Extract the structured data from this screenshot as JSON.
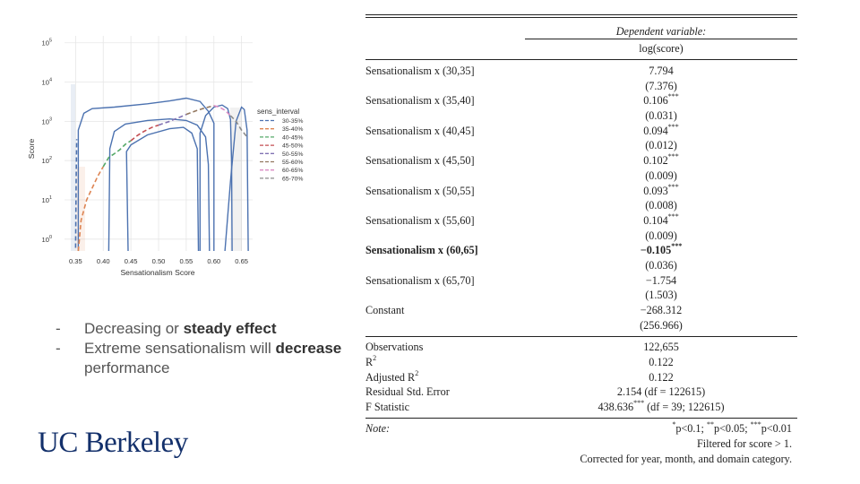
{
  "chart_data": {
    "type": "line",
    "xlabel": "Sensationalism Score",
    "ylabel": "Score",
    "yscale": "log",
    "xlim": [
      0.33,
      0.67
    ],
    "ylim": [
      0.5,
      150000
    ],
    "x_ticks": [
      0.35,
      0.4,
      0.45,
      0.5,
      0.55,
      0.6,
      0.65
    ],
    "x_tick_labels": [
      "0.35",
      "0.40",
      "0.45",
      "0.50",
      "0.55",
      "0.60",
      "0.65"
    ],
    "y_ticks": [
      1,
      10,
      100,
      1000,
      10000,
      100000
    ],
    "y_tick_labels": [
      {
        "base": "10",
        "exp": "0"
      },
      {
        "base": "10",
        "exp": "1"
      },
      {
        "base": "10",
        "exp": "2"
      },
      {
        "base": "10",
        "exp": "3"
      },
      {
        "base": "10",
        "exp": "4"
      },
      {
        "base": "10",
        "exp": "5"
      }
    ],
    "grid": true,
    "legend_title": "sens_interval",
    "legend_position": "right",
    "series": [
      {
        "name": "30-35%",
        "color": "#4c72b0",
        "x": [
          0.35,
          0.351,
          0.352
        ],
        "y": [
          0.6,
          30,
          350
        ]
      },
      {
        "name": "35-40%",
        "color": "#dd8452",
        "x": [
          0.355,
          0.36,
          0.37,
          0.38,
          0.39,
          0.4
        ],
        "y": [
          0.5,
          3,
          10,
          20,
          40,
          70
        ]
      },
      {
        "name": "40-45%",
        "color": "#55a868",
        "x": [
          0.4,
          0.41,
          0.42,
          0.43,
          0.44,
          0.45
        ],
        "y": [
          70,
          120,
          150,
          190,
          260,
          320
        ]
      },
      {
        "name": "45-50%",
        "color": "#c44e52",
        "x": [
          0.45,
          0.46,
          0.47,
          0.48,
          0.49,
          0.5
        ],
        "y": [
          320,
          420,
          520,
          620,
          720,
          800
        ]
      },
      {
        "name": "50-55%",
        "color": "#8172b3",
        "x": [
          0.5,
          0.51,
          0.52,
          0.53,
          0.54,
          0.55
        ],
        "y": [
          800,
          900,
          1000,
          1150,
          1300,
          1500
        ]
      },
      {
        "name": "55-60%",
        "color": "#937860",
        "x": [
          0.55,
          0.56,
          0.57,
          0.58,
          0.59,
          0.6
        ],
        "y": [
          1500,
          1700,
          1900,
          2100,
          2300,
          2500
        ]
      },
      {
        "name": "60-65%",
        "color": "#da8bc3",
        "x": [
          0.6,
          0.61,
          0.62,
          0.63
        ],
        "y": [
          2500,
          2300,
          1900,
          1400
        ]
      },
      {
        "name": "65-70%",
        "color": "#8c8c8c",
        "x": [
          0.63,
          0.64,
          0.65,
          0.66
        ],
        "y": [
          1400,
          1000,
          600,
          400
        ]
      }
    ],
    "contours": [
      {
        "color": "#4c72b0",
        "x": [
          0.355,
          0.355,
          0.365,
          0.38,
          0.42,
          0.48,
          0.52,
          0.55,
          0.575,
          0.59,
          0.6,
          0.6
        ],
        "y": [
          0.3,
          600,
          1600,
          2100,
          2300,
          2800,
          3300,
          3900,
          3200,
          1800,
          900,
          0.3
        ]
      },
      {
        "color": "#4c72b0",
        "x": [
          0.41,
          0.412,
          0.42,
          0.44,
          0.48,
          0.52,
          0.55,
          0.57,
          0.585,
          0.59,
          0.592
        ],
        "y": [
          0.3,
          200,
          550,
          850,
          1050,
          1150,
          1050,
          800,
          400,
          80,
          0.3
        ]
      },
      {
        "color": "#4c72b0",
        "x": [
          0.445,
          0.442,
          0.45,
          0.48,
          0.52,
          0.545,
          0.56,
          0.57,
          0.572
        ],
        "y": [
          0.3,
          170,
          250,
          450,
          650,
          700,
          500,
          200,
          0.3
        ]
      },
      {
        "color": "#4c72b0",
        "x": [
          0.575,
          0.575,
          0.585,
          0.6,
          0.615,
          0.625,
          0.63,
          0.632,
          0.633
        ],
        "y": [
          0.3,
          500,
          1400,
          2300,
          2600,
          2100,
          1100,
          100,
          0.3
        ]
      },
      {
        "color": "#4c72b0",
        "x": [
          0.62,
          0.63,
          0.64,
          0.65,
          0.655,
          0.66,
          0.662
        ],
        "y": [
          0.3,
          30,
          1000,
          2300,
          2000,
          600,
          0.3
        ]
      }
    ]
  },
  "bullets": [
    {
      "dash": "-",
      "text": "Decreasing or ",
      "bold": "steady effect",
      "after": ""
    },
    {
      "dash": "-",
      "text": "Extreme sensationalism will ",
      "bold": "decrease",
      "after": " performance"
    }
  ],
  "logo": "UC Berkeley",
  "regression": {
    "header_top": "Dependent variable:",
    "header_dv": "log(score)",
    "rows": [
      {
        "label": "Sensationalism x (30,35]",
        "coef": "7.794",
        "stars": "",
        "se": "(7.376)",
        "bold": false
      },
      {
        "label": "Sensationalism x (35,40]",
        "coef": "0.106",
        "stars": "***",
        "se": "(0.031)",
        "bold": false
      },
      {
        "label": "Sensationalism x (40,45]",
        "coef": "0.094",
        "stars": "***",
        "se": "(0.012)",
        "bold": false
      },
      {
        "label": "Sensationalism x (45,50]",
        "coef": "0.102",
        "stars": "***",
        "se": "(0.009)",
        "bold": false
      },
      {
        "label": "Sensationalism x (50,55]",
        "coef": "0.093",
        "stars": "***",
        "se": "(0.008)",
        "bold": false
      },
      {
        "label": "Sensationalism x (55,60]",
        "coef": "0.104",
        "stars": "***",
        "se": "(0.009)",
        "bold": false
      },
      {
        "label": "Sensationalism x (60,65]",
        "coef": "−0.105",
        "stars": "***",
        "se": "(0.036)",
        "bold": true
      },
      {
        "label": "Sensationalism x (65,70]",
        "coef": "−1.754",
        "stars": "",
        "se": "(1.503)",
        "bold": false
      },
      {
        "label": "Constant",
        "coef": "−268.312",
        "stars": "",
        "se": "(256.966)",
        "bold": false
      }
    ],
    "stats": [
      {
        "label": "Observations",
        "sup": "",
        "value": "122,655",
        "vsup": "",
        "vrest": ""
      },
      {
        "label": "R",
        "sup": "2",
        "value": "0.122",
        "vsup": "",
        "vrest": ""
      },
      {
        "label": "Adjusted R",
        "sup": "2",
        "value": "0.122",
        "vsup": "",
        "vrest": ""
      },
      {
        "label": "Residual Std. Error",
        "sup": "",
        "value": "2.154 (df = 122615)",
        "vsup": "",
        "vrest": ""
      },
      {
        "label": "F Statistic",
        "sup": "",
        "value": "438.636",
        "vsup": "***",
        "vrest": " (df = 39; 122615)"
      }
    ],
    "note_label": "Note:",
    "note_sig": {
      "s1": "*",
      "t1": "p<0.1; ",
      "s2": "**",
      "t2": "p<0.05; ",
      "s3": "***",
      "t3": "p<0.01"
    },
    "note_lines": [
      "Filtered for score > 1.",
      "Corrected for year, month, and domain category."
    ]
  }
}
